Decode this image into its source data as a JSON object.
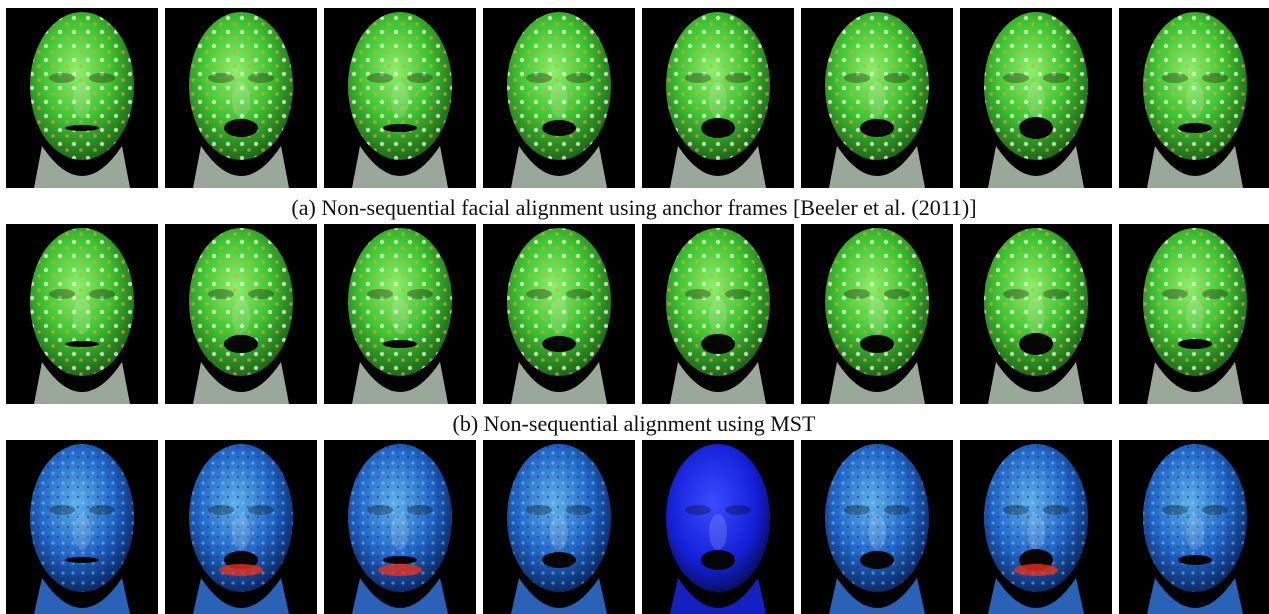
{
  "captions": [
    "(a) Non-sequential facial alignment using anchor frames [Beeler et al. (2011)]",
    "(b) Non-sequential alignment using MST"
  ]
}
